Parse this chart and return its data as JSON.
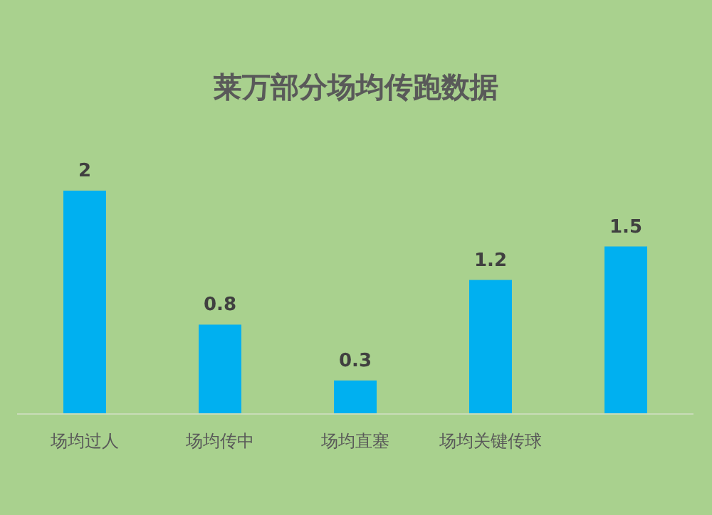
{
  "chart_data": {
    "type": "bar",
    "title": "莱万部分场均传跑数据",
    "categories": [
      "场均过人",
      "场均传中",
      "场均直塞",
      "场均关键传球",
      null
    ],
    "values": [
      2,
      0.8,
      0.3,
      1.2,
      1.5
    ],
    "color": "#00b0f0",
    "data_labels": true,
    "tick_labels": "x"
  }
}
